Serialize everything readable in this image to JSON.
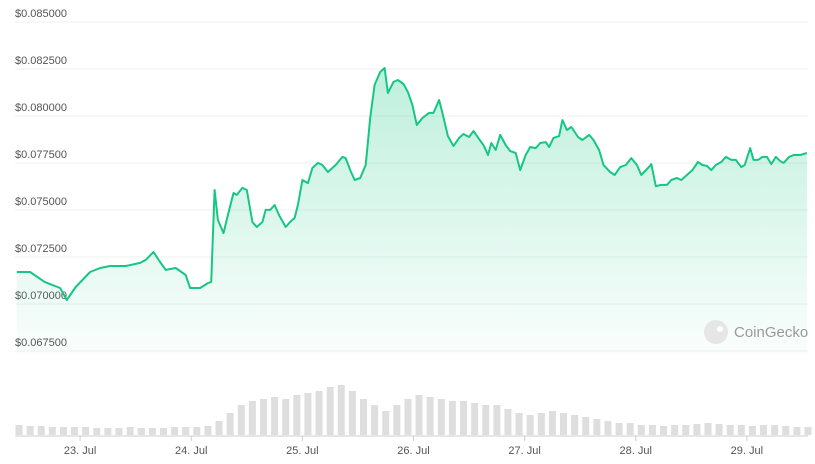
{
  "chart_data": {
    "type": "line",
    "watermark": "CoinGecko",
    "xlim": [
      22.414,
      29.55
    ],
    "xticks": [
      {
        "value": 23,
        "label": "23. Jul"
      },
      {
        "value": 24,
        "label": "24. Jul"
      },
      {
        "value": 25,
        "label": "25. Jul"
      },
      {
        "value": 26,
        "label": "26. Jul"
      },
      {
        "value": 27,
        "label": "27. Jul"
      },
      {
        "value": 28,
        "label": "28. Jul"
      },
      {
        "value": 29,
        "label": "29. Jul"
      }
    ],
    "ylim": [
      0.0671,
      0.085
    ],
    "yticks": [
      {
        "value": 0.085,
        "label": "$0.085000"
      },
      {
        "value": 0.0825,
        "label": "$0.082500"
      },
      {
        "value": 0.08,
        "label": "$0.080000"
      },
      {
        "value": 0.0775,
        "label": "$0.077500"
      },
      {
        "value": 0.075,
        "label": "$0.075000"
      },
      {
        "value": 0.0725,
        "label": "$0.072500"
      },
      {
        "value": 0.07,
        "label": "$0.070000"
      },
      {
        "value": 0.0675,
        "label": "$0.067500"
      }
    ],
    "y2lim": [
      0,
      60
    ],
    "grid": true,
    "series": [
      {
        "color": "#16c784",
        "x": [
          22.43,
          22.55,
          22.68,
          22.82,
          22.88,
          22.96,
          23.09,
          23.18,
          23.27,
          23.41,
          23.54,
          23.59,
          23.66,
          23.72,
          23.77,
          23.86,
          23.95,
          23.99,
          24.08,
          24.15,
          24.18,
          24.21,
          24.24,
          24.29,
          24.33,
          24.38,
          24.41,
          24.46,
          24.5,
          24.55,
          24.59,
          24.64,
          24.67,
          24.71,
          24.75,
          24.79,
          24.85,
          24.89,
          24.93,
          24.96,
          25.0,
          25.05,
          25.09,
          25.14,
          25.18,
          25.23,
          25.3,
          25.36,
          25.39,
          25.43,
          25.47,
          25.52,
          25.57,
          25.61,
          25.65,
          25.7,
          25.74,
          25.77,
          25.82,
          25.86,
          25.91,
          25.95,
          25.99,
          26.03,
          26.08,
          26.14,
          26.18,
          26.23,
          26.26,
          26.31,
          26.36,
          26.41,
          26.45,
          26.5,
          26.54,
          26.59,
          26.63,
          26.67,
          26.7,
          26.74,
          26.78,
          26.83,
          26.87,
          26.92,
          26.96,
          27.01,
          27.05,
          27.1,
          27.14,
          27.19,
          27.22,
          27.26,
          27.31,
          27.34,
          27.38,
          27.42,
          27.48,
          27.52,
          27.58,
          27.62,
          27.67,
          27.71,
          27.77,
          27.81,
          27.86,
          27.91,
          27.96,
          28.01,
          28.05,
          28.11,
          28.14,
          28.18,
          28.23,
          28.28,
          28.32,
          28.37,
          28.41,
          28.46,
          28.51,
          28.56,
          28.6,
          28.64,
          28.68,
          28.72,
          28.77,
          28.81,
          28.86,
          28.9,
          28.95,
          28.98,
          29.03,
          29.06,
          29.1,
          29.14,
          29.18,
          29.22,
          29.26,
          29.3,
          29.33,
          29.38,
          29.42,
          29.48,
          29.54
        ],
        "values": [
          0.07149,
          0.07149,
          0.07096,
          0.07064,
          0.07,
          0.07069,
          0.07149,
          0.0717,
          0.07181,
          0.07181,
          0.07197,
          0.07213,
          0.07255,
          0.07202,
          0.0716,
          0.0717,
          0.07133,
          0.07064,
          0.07064,
          0.0709,
          0.07096,
          0.07585,
          0.07426,
          0.07356,
          0.07452,
          0.07569,
          0.07559,
          0.07596,
          0.07585,
          0.07415,
          0.07388,
          0.07415,
          0.07479,
          0.07479,
          0.07505,
          0.07452,
          0.07388,
          0.07415,
          0.07436,
          0.07505,
          0.07638,
          0.07622,
          0.07702,
          0.07729,
          0.07718,
          0.07681,
          0.07718,
          0.07761,
          0.07755,
          0.07691,
          0.07638,
          0.07649,
          0.07718,
          0.07968,
          0.08144,
          0.08213,
          0.08234,
          0.08101,
          0.0816,
          0.0817,
          0.08149,
          0.08106,
          0.08037,
          0.07931,
          0.07968,
          0.07995,
          0.07995,
          0.08064,
          0.07995,
          0.07872,
          0.07819,
          0.07862,
          0.07883,
          0.07867,
          0.07899,
          0.07856,
          0.07824,
          0.07771,
          0.07835,
          0.07798,
          0.07878,
          0.07824,
          0.07792,
          0.07782,
          0.07691,
          0.07771,
          0.07814,
          0.07808,
          0.07835,
          0.0784,
          0.07814,
          0.07862,
          0.07872,
          0.07957,
          0.07904,
          0.0792,
          0.07867,
          0.07851,
          0.07878,
          0.07851,
          0.07798,
          0.07718,
          0.07681,
          0.07665,
          0.07707,
          0.07718,
          0.07755,
          0.07718,
          0.07665,
          0.07702,
          0.07723,
          0.07606,
          0.07612,
          0.07612,
          0.07638,
          0.07649,
          0.07638,
          0.07665,
          0.07691,
          0.07734,
          0.07718,
          0.07713,
          0.07691,
          0.07718,
          0.07734,
          0.07761,
          0.07745,
          0.07745,
          0.07707,
          0.07718,
          0.07808,
          0.07745,
          0.07745,
          0.07761,
          0.07761,
          0.07723,
          0.07761,
          0.07739,
          0.07729,
          0.07761,
          0.07771,
          0.07771,
          0.07782
        ]
      },
      {
        "color": "#dedede",
        "axis": "y2",
        "x": [
          22.45,
          22.55,
          22.65,
          22.75,
          22.85,
          22.95,
          23.05,
          23.15,
          23.25,
          23.35,
          23.45,
          23.55,
          23.65,
          23.75,
          23.85,
          23.95,
          24.05,
          24.15,
          24.25,
          24.35,
          24.45,
          24.55,
          24.65,
          24.75,
          24.85,
          24.95,
          25.05,
          25.15,
          25.25,
          25.35,
          25.45,
          25.55,
          25.65,
          25.75,
          25.85,
          25.95,
          26.05,
          26.15,
          26.25,
          26.35,
          26.45,
          26.55,
          26.65,
          26.75,
          26.85,
          26.95,
          27.05,
          27.15,
          27.25,
          27.35,
          27.45,
          27.55,
          27.65,
          27.75,
          27.85,
          27.95,
          28.05,
          28.15,
          28.25,
          28.35,
          28.45,
          28.55,
          28.65,
          28.75,
          28.85,
          28.95,
          29.05,
          29.15,
          29.25,
          29.35,
          29.45,
          29.55
        ],
        "values": [
          10,
          9,
          9,
          8,
          8,
          8,
          8,
          7,
          7,
          7,
          8,
          7,
          7,
          7,
          8,
          8,
          8,
          9,
          14,
          22,
          30,
          34,
          36,
          38,
          36,
          40,
          42,
          44,
          48,
          50,
          44,
          36,
          30,
          24,
          30,
          36,
          40,
          38,
          36,
          34,
          34,
          32,
          30,
          30,
          26,
          22,
          20,
          22,
          24,
          22,
          20,
          18,
          16,
          14,
          12,
          12,
          10,
          10,
          9,
          10,
          10,
          11,
          12,
          11,
          10,
          10,
          9,
          10,
          10,
          9,
          8,
          8
        ]
      }
    ]
  }
}
